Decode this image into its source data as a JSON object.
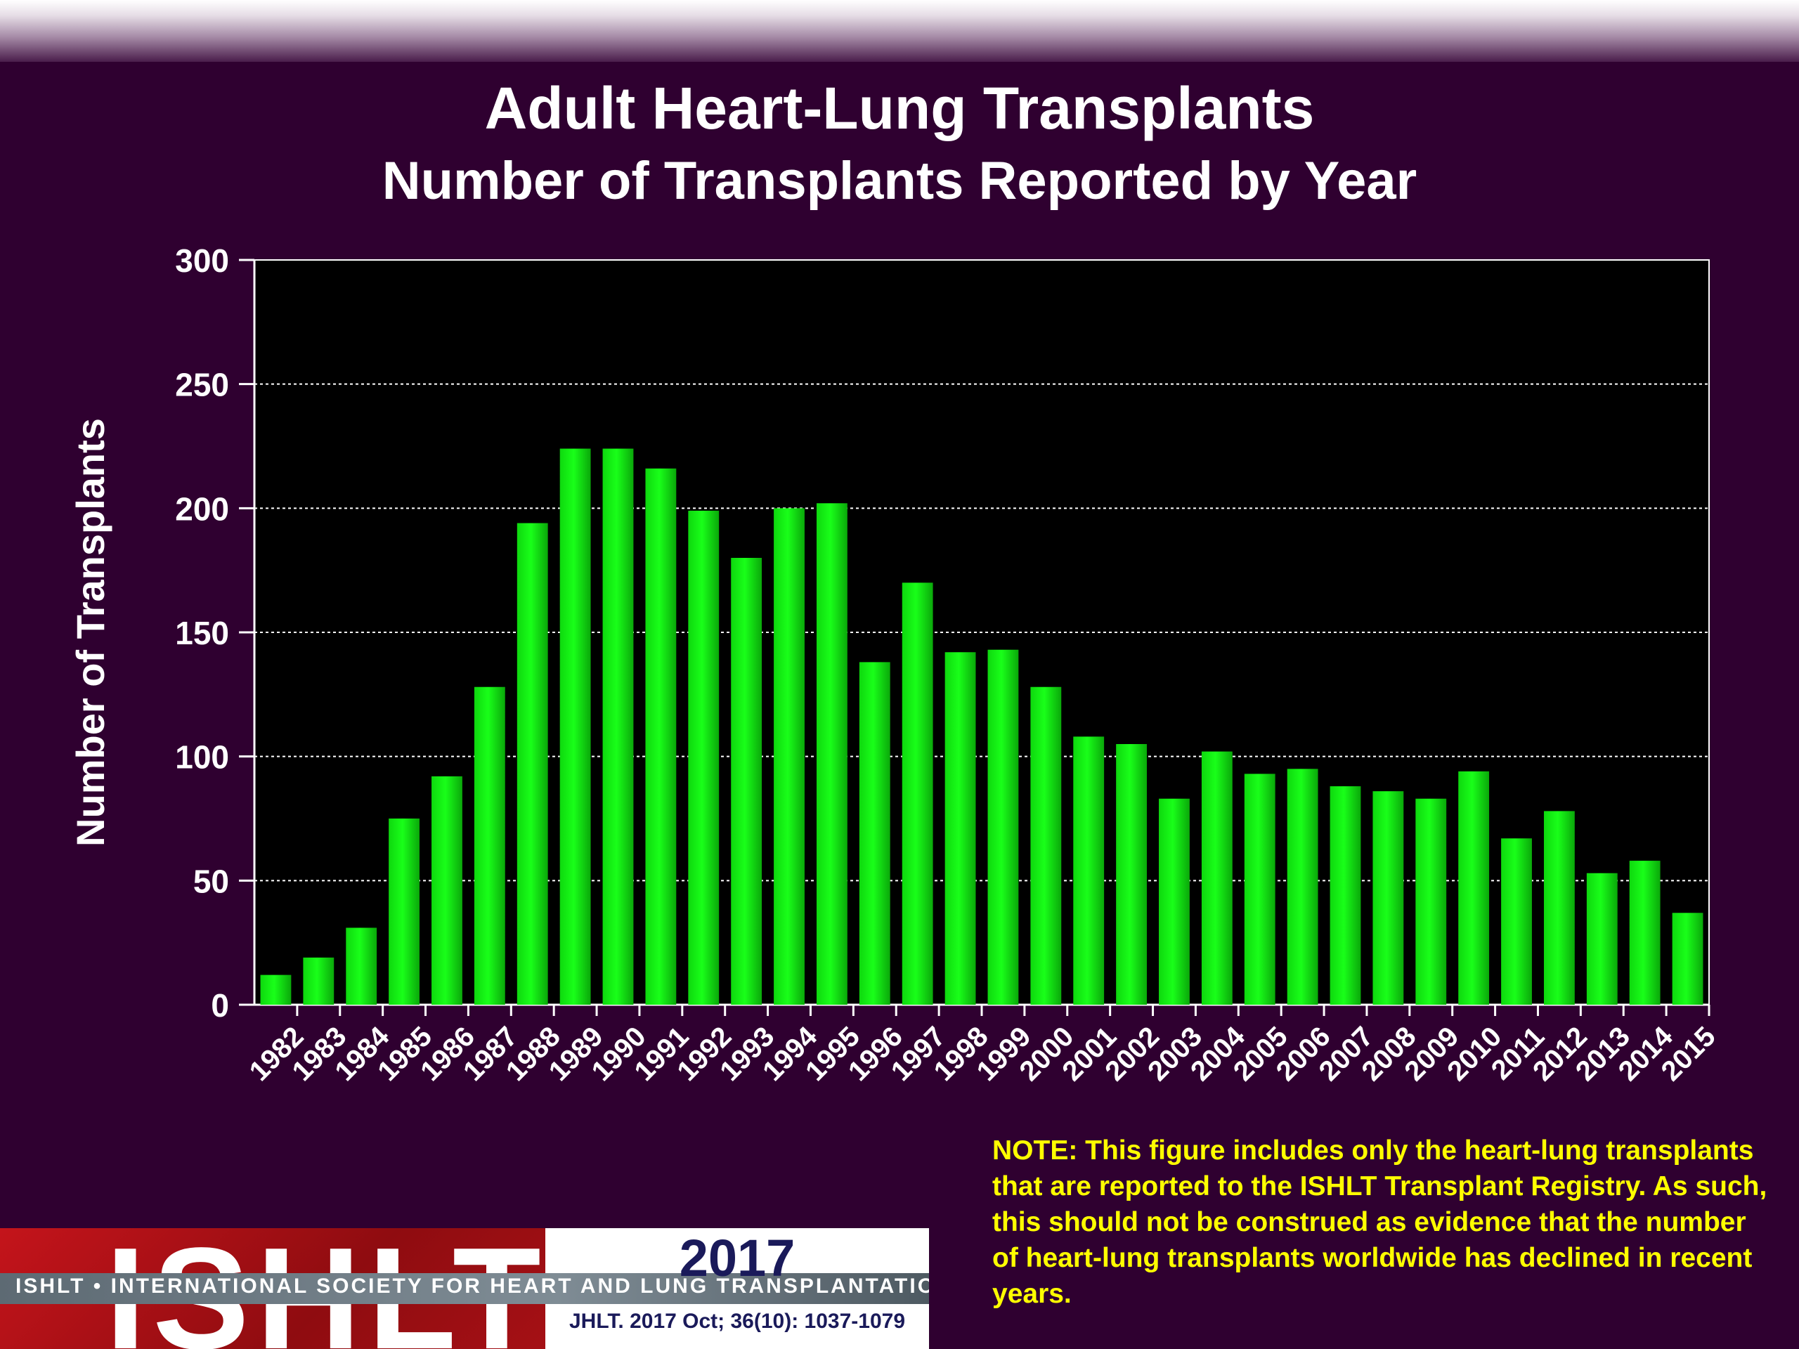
{
  "title": "Adult Heart-Lung Transplants",
  "subtitle": "Number of Transplants Reported by Year",
  "chart_data": {
    "type": "bar",
    "title": "Adult Heart-Lung Transplants",
    "subtitle": "Number of Transplants Reported by Year",
    "xlabel": "",
    "ylabel": "Number of Transplants",
    "ylim": [
      0,
      300
    ],
    "yticks": [
      0,
      50,
      100,
      150,
      200,
      250,
      300
    ],
    "grid": true,
    "categories": [
      "1982",
      "1983",
      "1984",
      "1985",
      "1986",
      "1987",
      "1988",
      "1989",
      "1990",
      "1991",
      "1992",
      "1993",
      "1994",
      "1995",
      "1996",
      "1997",
      "1998",
      "1999",
      "2000",
      "2001",
      "2002",
      "2003",
      "2004",
      "2005",
      "2006",
      "2007",
      "2008",
      "2009",
      "2010",
      "2011",
      "2012",
      "2013",
      "2014",
      "2015"
    ],
    "values": [
      12,
      19,
      31,
      75,
      92,
      128,
      194,
      224,
      224,
      216,
      199,
      180,
      200,
      202,
      138,
      170,
      142,
      143,
      128,
      108,
      105,
      83,
      102,
      93,
      95,
      88,
      86,
      83,
      94,
      67,
      78,
      53,
      58,
      37
    ],
    "bar_color": "#19ff19",
    "plot_background": "#000000"
  },
  "note": "NOTE: This figure includes only the heart-lung transplants that are reported to the ISHLT Transplant Registry.  As such, this should not be construed as evidence that the number of heart-lung transplants worldwide has declined in recent years.",
  "logo": {
    "letters": "ISHLT",
    "society": "ISHLT • INTERNATIONAL SOCIETY FOR HEART AND LUNG TRANSPLANTATION",
    "year": "2017",
    "citation": "JHLT. 2017 Oct; 36(10): 1037-1079"
  }
}
